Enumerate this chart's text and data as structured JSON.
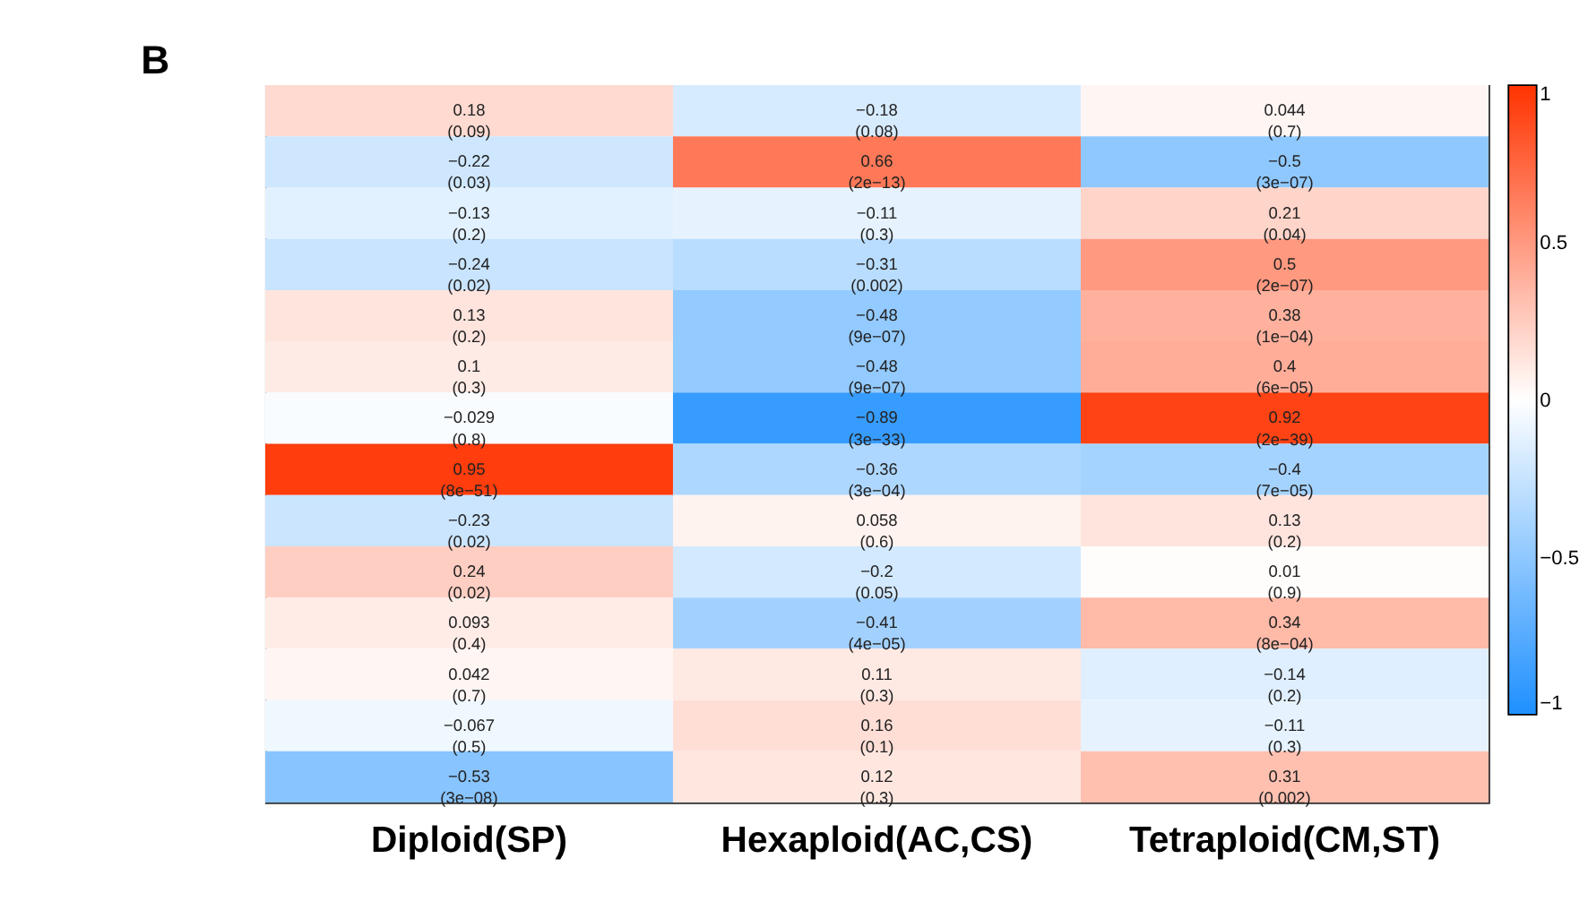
{
  "chart_data": {
    "type": "heatmap",
    "annotations": [
      "B"
    ],
    "categories": [
      "Diploid(SP)",
      "Hexaploid(AC,CS)",
      "Tetraploid(CM,ST)"
    ],
    "y_categories": [
      null,
      null,
      null,
      null,
      null,
      null,
      null,
      null,
      null,
      null,
      null,
      null,
      null,
      null
    ],
    "cells": [
      [
        0.18,
        -0.18,
        0.044
      ],
      [
        -0.22,
        0.66,
        -0.5
      ],
      [
        -0.13,
        -0.11,
        0.21
      ],
      [
        -0.24,
        -0.31,
        0.5
      ],
      [
        0.13,
        -0.48,
        0.38
      ],
      [
        0.1,
        -0.48,
        0.4
      ],
      [
        -0.029,
        -0.89,
        0.92
      ],
      [
        0.95,
        -0.36,
        -0.4
      ],
      [
        -0.23,
        0.058,
        0.13
      ],
      [
        0.24,
        -0.2,
        0.01
      ],
      [
        0.093,
        -0.41,
        0.34
      ],
      [
        0.042,
        0.11,
        -0.14
      ],
      [
        -0.067,
        0.16,
        -0.11
      ],
      [
        -0.53,
        0.12,
        0.31
      ]
    ],
    "cell_labels": [
      [
        "0.18\n(0.09)",
        "−0.18\n(0.08)",
        "0.044\n(0.7)"
      ],
      [
        "−0.22\n(0.03)",
        "0.66\n(2e−13)",
        "−0.5\n(3e−07)"
      ],
      [
        "−0.13\n(0.2)",
        "−0.11\n(0.3)",
        "0.21\n(0.04)"
      ],
      [
        "−0.24\n(0.02)",
        "−0.31\n(0.002)",
        "0.5\n(2e−07)"
      ],
      [
        "0.13\n(0.2)",
        "−0.48\n(9e−07)",
        "0.38\n(1e−04)"
      ],
      [
        "0.1\n(0.3)",
        "−0.48\n(9e−07)",
        "0.4\n(6e−05)"
      ],
      [
        "−0.029\n(0.8)",
        "−0.89\n(3e−33)",
        "0.92\n(2e−39)"
      ],
      [
        "0.95\n(8e−51)",
        "−0.36\n(3e−04)",
        "−0.4\n(7e−05)"
      ],
      [
        "−0.23\n(0.02)",
        "0.058\n(0.6)",
        "0.13\n(0.2)"
      ],
      [
        "0.24\n(0.02)",
        "−0.2\n(0.05)",
        "0.01\n(0.9)"
      ],
      [
        "0.093\n(0.4)",
        "−0.41\n(4e−05)",
        "0.34\n(8e−04)"
      ],
      [
        "0.042\n(0.7)",
        "0.11\n(0.3)",
        "−0.14\n(0.2)"
      ],
      [
        "−0.067\n(0.5)",
        "0.16\n(0.1)",
        "−0.11\n(0.3)"
      ],
      [
        "−0.53\n(3e−08)",
        "0.12\n(0.3)",
        "0.31\n(0.002)"
      ]
    ],
    "clim": [
      -1,
      1
    ],
    "cticks": [
      {
        "value": -1,
        "label": "−1"
      },
      {
        "value": -0.5,
        "label": "−0.5"
      },
      0,
      0.5,
      1
    ],
    "tick_labels": "x"
  }
}
